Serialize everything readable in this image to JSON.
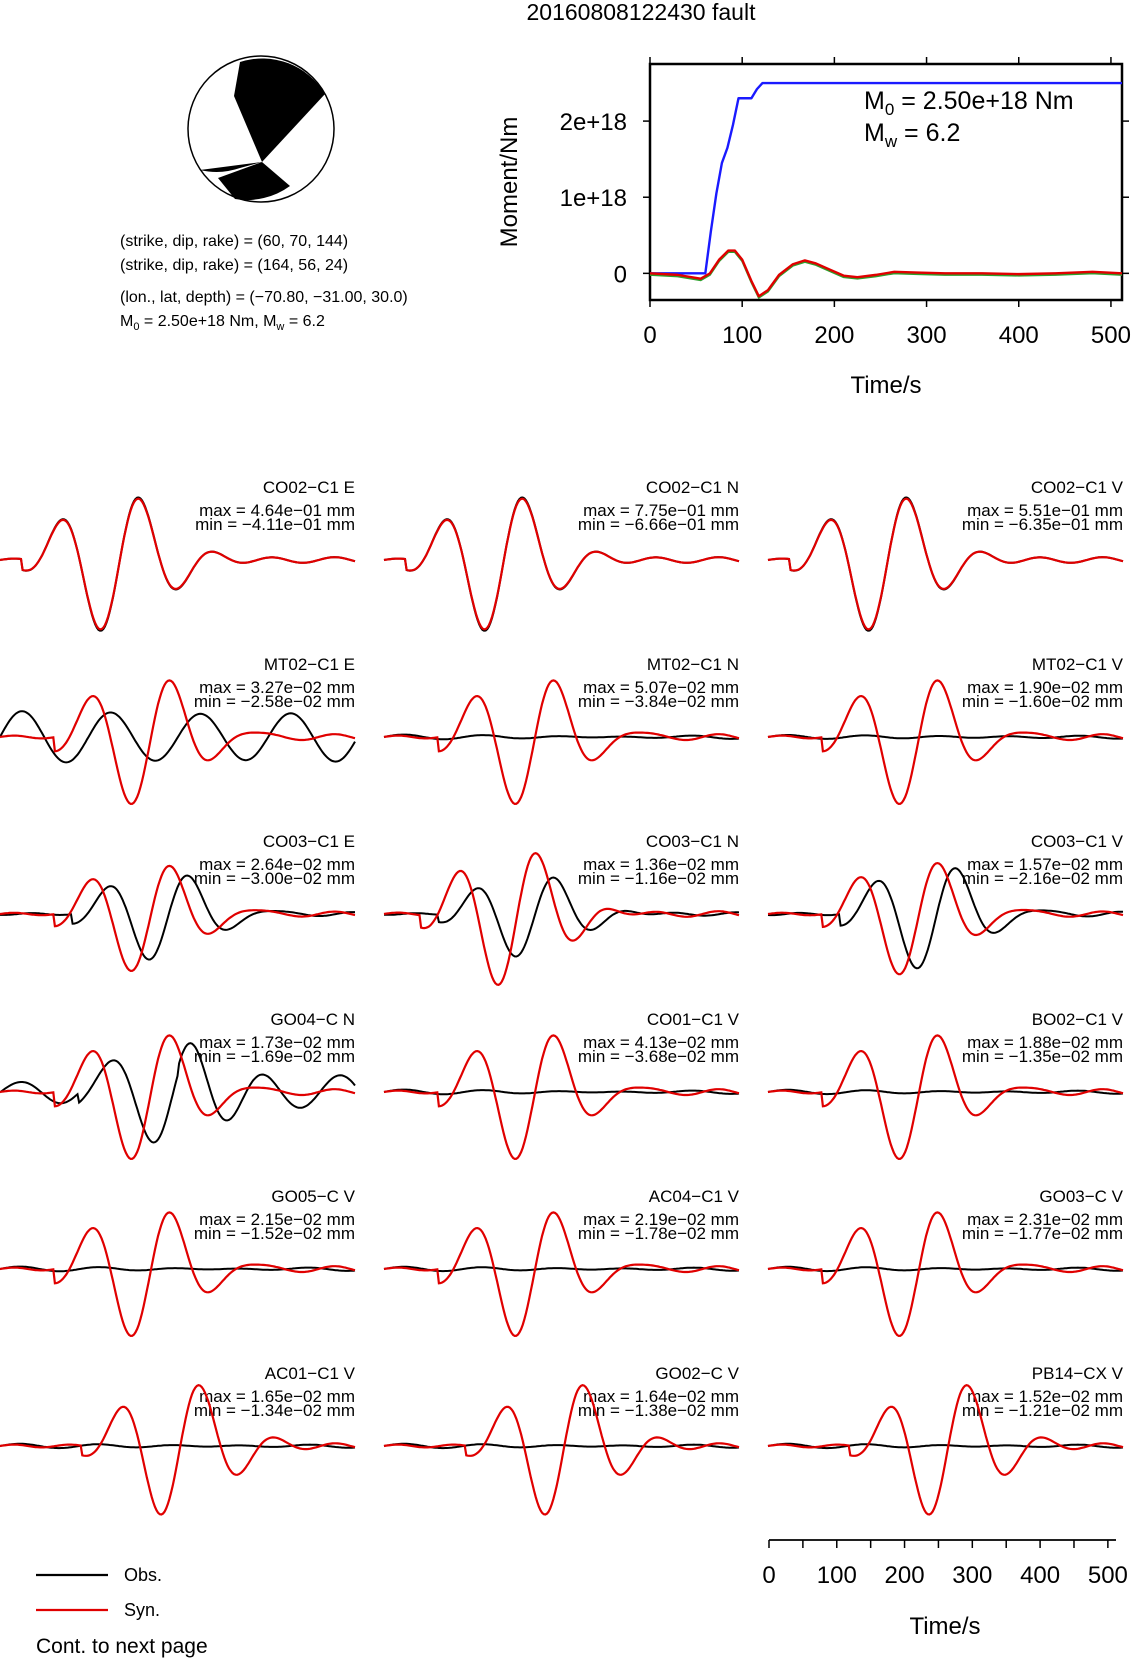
{
  "title": "20160808122430 fault",
  "mechanism": {
    "line1": "(strike, dip, rake) = (60, 70, 144)",
    "line2": "(strike, dip, rake) = (164, 56, 24)",
    "line3": "(lon., lat, depth) = (−70.80, −31.00, 30.0)",
    "m0_label": "M",
    "m0_sub": "0",
    "m0_value": " = 2.50e+18 Nm, M",
    "mw_sub": "w",
    "mw_value": " = 6.2"
  },
  "moment_plot": {
    "ylabel": "Moment/Nm",
    "xlabel": "Time/s",
    "m0_text": " = 2.50e+18 Nm",
    "mw_text": " = 6.2",
    "m_letter": "M",
    "m0_sub": "0",
    "mw_sub": "w",
    "colors": {
      "cumulative": "#1a1aff",
      "rate": "#e00000",
      "rate_alt": "#2ca02c",
      "frame": "#000000"
    }
  },
  "legend": {
    "obs": "Obs.",
    "syn": "Syn.",
    "obs_color": "#000000",
    "syn_color": "#e00000"
  },
  "footer": "Cont. to next page",
  "waveform_axis": {
    "xlabel": "Time/s"
  },
  "stations": [
    {
      "label": "CO02−C1 E",
      "max": "max = 4.64e−01 mm",
      "min": "min = −4.11e−01 mm"
    },
    {
      "label": "CO02−C1 N",
      "max": "max = 7.75e−01 mm",
      "min": "min = −6.66e−01 mm"
    },
    {
      "label": "CO02−C1 V",
      "max": "max = 5.51e−01 mm",
      "min": "min = −6.35e−01 mm"
    },
    {
      "label": "MT02−C1 E",
      "max": "max = 3.27e−02 mm",
      "min": "min = −2.58e−02 mm"
    },
    {
      "label": "MT02−C1 N",
      "max": "max = 5.07e−02 mm",
      "min": "min = −3.84e−02 mm"
    },
    {
      "label": "MT02−C1 V",
      "max": "max = 1.90e−02 mm",
      "min": "min = −1.60e−02 mm"
    },
    {
      "label": "CO03−C1 E",
      "max": "max = 2.64e−02 mm",
      "min": "min = −3.00e−02 mm"
    },
    {
      "label": "CO03−C1 N",
      "max": "max = 1.36e−02 mm",
      "min": "min = −1.16e−02 mm"
    },
    {
      "label": "CO03−C1 V",
      "max": "max = 1.57e−02 mm",
      "min": "min = −2.16e−02 mm"
    },
    {
      "label": "GO04−C N",
      "max": "max = 1.73e−02 mm",
      "min": "min = −1.69e−02 mm"
    },
    {
      "label": "CO01−C1 V",
      "max": "max = 4.13e−02 mm",
      "min": "min = −3.68e−02 mm"
    },
    {
      "label": "BO02−C1 V",
      "max": "max = 1.88e−02 mm",
      "min": "min = −1.35e−02 mm"
    },
    {
      "label": "GO05−C V",
      "max": "max = 2.15e−02 mm",
      "min": "min = −1.52e−02 mm"
    },
    {
      "label": "AC04−C1 V",
      "max": "max = 2.19e−02 mm",
      "min": "min = −1.78e−02 mm"
    },
    {
      "label": "GO03−C V",
      "max": "max = 2.31e−02 mm",
      "min": "min = −1.77e−02 mm"
    },
    {
      "label": "AC01−C1 V",
      "max": "max = 1.65e−02 mm",
      "min": "min = −1.34e−02 mm"
    },
    {
      "label": "GO02−C V",
      "max": "max = 1.64e−02 mm",
      "min": "min = −1.38e−02 mm"
    },
    {
      "label": "PB14−CX V",
      "max": "max = 1.52e−02 mm",
      "min": "min = −1.21e−02 mm"
    }
  ],
  "chart_data": [
    {
      "type": "line",
      "xlabel": "Time/s",
      "ylabel": "Moment/Nm",
      "xlim": [
        0,
        512
      ],
      "ylim": [
        -3.5e+17,
        2.75e+18
      ],
      "x_ticks": [
        0,
        100,
        200,
        300,
        400,
        500
      ],
      "y_ticks": [
        0,
        1e+18,
        2e+18
      ],
      "y_tick_labels": [
        "0",
        "1e+18",
        "2e+18"
      ],
      "series": [
        {
          "x": [
            0,
            60,
            66,
            72,
            78,
            84,
            90,
            96,
            102,
            110,
            116,
            122,
            512
          ],
          "y": [
            0,
            0,
            5.5e+17,
            1.05e+18,
            1.45e+18,
            1.65e+18,
            1.95e+18,
            2.3e+18,
            2.3e+18,
            2.3e+18,
            2.42e+18,
            2.5e+18,
            2.5e+18
          ]
        },
        {
          "x": [
            0,
            30,
            55,
            65,
            75,
            85,
            92,
            100,
            110,
            118,
            128,
            140,
            155,
            168,
            180,
            195,
            210,
            225,
            245,
            265,
            290,
            320,
            360,
            400,
            440,
            480,
            512
          ],
          "y": [
            0,
            -2e+16,
            -7e+16,
            0.0,
            1.8e+17,
            3e+17,
            3e+17,
            1.8e+17,
            -1e+17,
            -3e+17,
            -2.2e+17,
            -2e+16,
            1.2e+17,
            1.7e+17,
            1.3e+17,
            5e+16,
            -3e+16,
            -5e+16,
            -2e+16,
            2e+16,
            1e+16,
            0.0,
            0.0,
            -1e+16,
            0.0,
            2e+16,
            0.0
          ]
        }
      ]
    },
    {
      "type": "line",
      "xlabel": "Time/s",
      "xlim": [
        0,
        512
      ],
      "x_ticks": [
        0,
        100,
        200,
        300,
        400,
        500
      ],
      "series": [
        {
          "name": "Obs."
        },
        {
          "name": "Syn."
        }
      ]
    }
  ]
}
